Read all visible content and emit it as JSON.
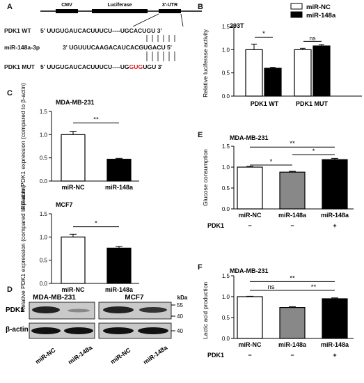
{
  "panel_a": {
    "letter": "A",
    "boxes": [
      "CMV",
      "Luciferase",
      "3'-UTR"
    ],
    "rows": [
      {
        "name": "PDK1 WT",
        "prefix": "5' UUGUGAUCACUUUCU----UG",
        "mid": "CACUGU",
        "suffix": " 3'"
      },
      {
        "name": "miR-148a-3p",
        "prefix": "3' UGUUUCAAGACAUCAC",
        "mid": "GUGACU",
        "suffix": " 5'"
      },
      {
        "name": "PDK1 MUT",
        "prefix": "5' UUGUGAUCACUUUCU----UG",
        "mut": "GUG",
        "mid2": "UGU",
        "suffix": " 3'"
      }
    ],
    "mut_color": "#d62020"
  },
  "western": {
    "letter": "D",
    "groups": [
      "MDA-MB-231",
      "MCF7"
    ],
    "bands": [
      "PDK1",
      "β-actin"
    ],
    "unit": "kDa",
    "markers": [
      "55",
      "40",
      "40"
    ],
    "lanes": [
      "miR-NC",
      "miR-148a",
      "miR-NC",
      "miR-148a"
    ]
  },
  "chart_data": [
    {
      "panel": "B",
      "type": "bar",
      "subtitle": "293T",
      "ylabel": "Relative luciferase activity",
      "ylim": [
        0,
        1.5
      ],
      "ticks": [
        0.0,
        0.5,
        1.0,
        1.5
      ],
      "categories": [
        "PDK1 WT",
        "PDK1 MUT"
      ],
      "legend": {
        "position": "top-right",
        "entries": [
          "miR-NC",
          "miR-148a"
        ]
      },
      "series": [
        {
          "name": "miR-NC",
          "fill": "#ffffff",
          "values": [
            1.0,
            1.0
          ],
          "errors": [
            0.12,
            0.03
          ]
        },
        {
          "name": "miR-148a",
          "fill": "#000000",
          "values": [
            0.6,
            1.08
          ],
          "errors": [
            0.02,
            0.03
          ]
        }
      ],
      "annotations": [
        "*",
        "ns"
      ]
    },
    {
      "panel": "C",
      "type": "bar",
      "subtitle": "MDA-MB-231",
      "ylabel": "Relative PDK1 expression (compared to β-actin)",
      "ylim": [
        0,
        1.5
      ],
      "ticks": [
        0.0,
        0.5,
        1.0,
        1.5
      ],
      "categories": [
        "miR-NC",
        "miR-148a"
      ],
      "values": [
        1.0,
        0.47
      ],
      "errors": [
        0.07,
        0.02
      ],
      "fills": [
        "#ffffff",
        "#000000"
      ],
      "annotations": [
        "**"
      ]
    },
    {
      "panel": "C",
      "type": "bar",
      "subtitle": "MCF7",
      "ylabel": "Relative PDK1 expression (compared to β-actin)",
      "ylim": [
        0,
        1.5
      ],
      "ticks": [
        0.0,
        0.5,
        1.0,
        1.5
      ],
      "categories": [
        "miR-NC",
        "miR-148a"
      ],
      "values": [
        1.0,
        0.76
      ],
      "errors": [
        0.06,
        0.04
      ],
      "fills": [
        "#ffffff",
        "#000000"
      ],
      "annotations": [
        "*"
      ]
    },
    {
      "panel": "E",
      "type": "bar",
      "subtitle": "MDA-MB-231",
      "ylabel": "Glucose consumption",
      "ylim": [
        0,
        1.5
      ],
      "ticks": [
        0.0,
        0.5,
        1.0,
        1.5
      ],
      "categories": [
        "miR-NC",
        "miR-148a",
        "miR-148a"
      ],
      "values": [
        1.0,
        0.88,
        1.18
      ],
      "errors": [
        0.02,
        0.02,
        0.03
      ],
      "fills": [
        "#ffffff",
        "#888888",
        "#000000"
      ],
      "condition": {
        "label": "PDK1",
        "values": [
          "−",
          "−",
          "+"
        ]
      },
      "annotations": [
        "*",
        "*",
        "**"
      ]
    },
    {
      "panel": "F",
      "type": "bar",
      "subtitle": "MDA-MB-231",
      "ylabel": "Lactic acid production",
      "ylim": [
        0,
        1.5
      ],
      "ticks": [
        0.0,
        0.5,
        1.0,
        1.5
      ],
      "categories": [
        "miR-NC",
        "miR-148a",
        "miR-148a"
      ],
      "values": [
        1.0,
        0.74,
        0.95
      ],
      "errors": [
        0.01,
        0.02,
        0.02
      ],
      "fills": [
        "#ffffff",
        "#888888",
        "#000000"
      ],
      "condition": {
        "label": "PDK1",
        "values": [
          "−",
          "−",
          "+"
        ]
      },
      "annotations": [
        "ns",
        "**",
        "**"
      ]
    }
  ]
}
